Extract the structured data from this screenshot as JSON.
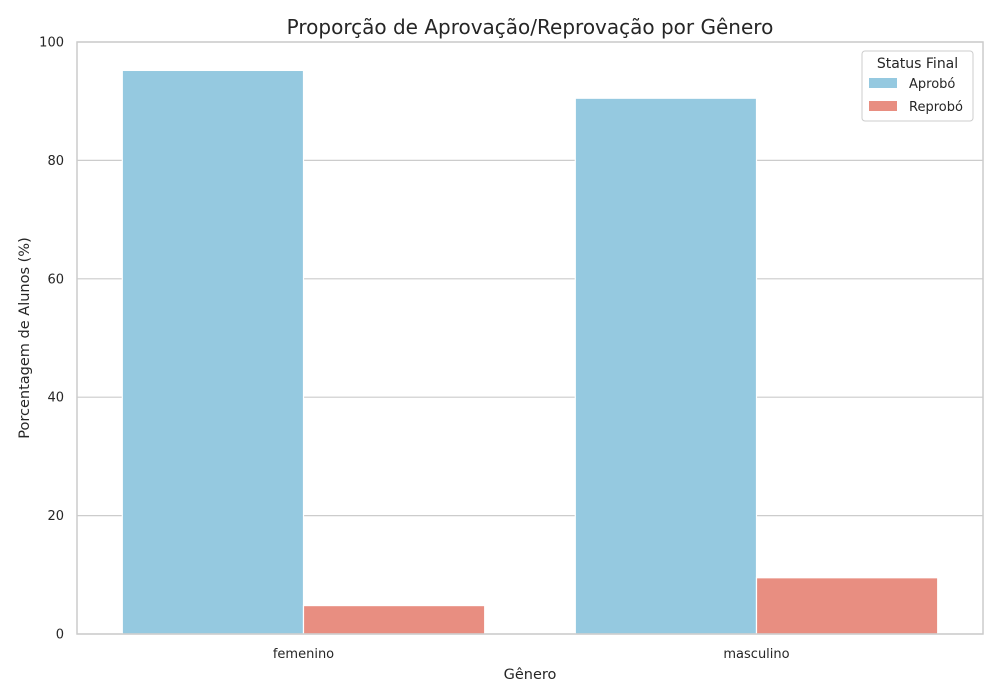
{
  "chart_data": {
    "type": "bar",
    "title": "Proporção de Aprovação/Reprovação por Gênero",
    "xlabel": "Gênero",
    "ylabel": "Porcentagem de Alunos (%)",
    "categories": [
      "femenino",
      "masculino"
    ],
    "ylim": [
      0,
      100
    ],
    "yticks": [
      "0",
      "20",
      "40",
      "60",
      "80",
      "100"
    ],
    "grid": "horizontal",
    "legend": {
      "title": "Status Final",
      "placement": "top-right"
    },
    "series": [
      {
        "name": "Aprobó",
        "color": "#95c9e0",
        "values": [
          95.2,
          90.5
        ]
      },
      {
        "name": "Reprobó",
        "color": "#e88e81",
        "values": [
          4.8,
          9.5
        ]
      }
    ]
  }
}
